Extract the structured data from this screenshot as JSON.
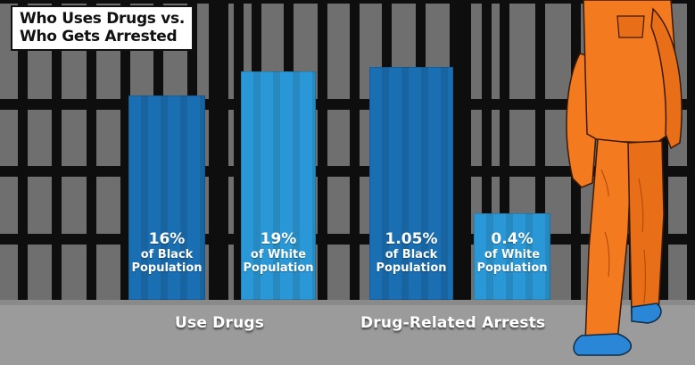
{
  "title": {
    "line1": "Who Uses Drugs vs.",
    "line2": "Who Gets Arrested"
  },
  "chart_data": {
    "type": "bar",
    "title": "Who Uses Drugs vs. Who Gets Arrested",
    "groups": [
      {
        "label": "Use Drugs",
        "bars": [
          {
            "value": 16,
            "value_label": "16%",
            "line1": "of Black",
            "line2": "Population",
            "color": "#1a6fb3"
          },
          {
            "value": 19,
            "value_label": "19%",
            "line1": "of White",
            "line2": "Population",
            "color": "#2a98d6"
          }
        ]
      },
      {
        "label": "Drug-Related Arrests",
        "bars": [
          {
            "value": 1.05,
            "value_label": "1.05%",
            "line1": "of Black",
            "line2": "Population",
            "color": "#1a6fb3"
          },
          {
            "value": 0.4,
            "value_label": "0.4%",
            "line1": "of White",
            "line2": "Population",
            "color": "#2a98d6"
          }
        ]
      }
    ],
    "colors": {
      "black_population": "#1a6fb3",
      "white_population": "#2a98d6",
      "jumpsuit": "#f47a20",
      "shoes": "#2a86d6"
    }
  }
}
